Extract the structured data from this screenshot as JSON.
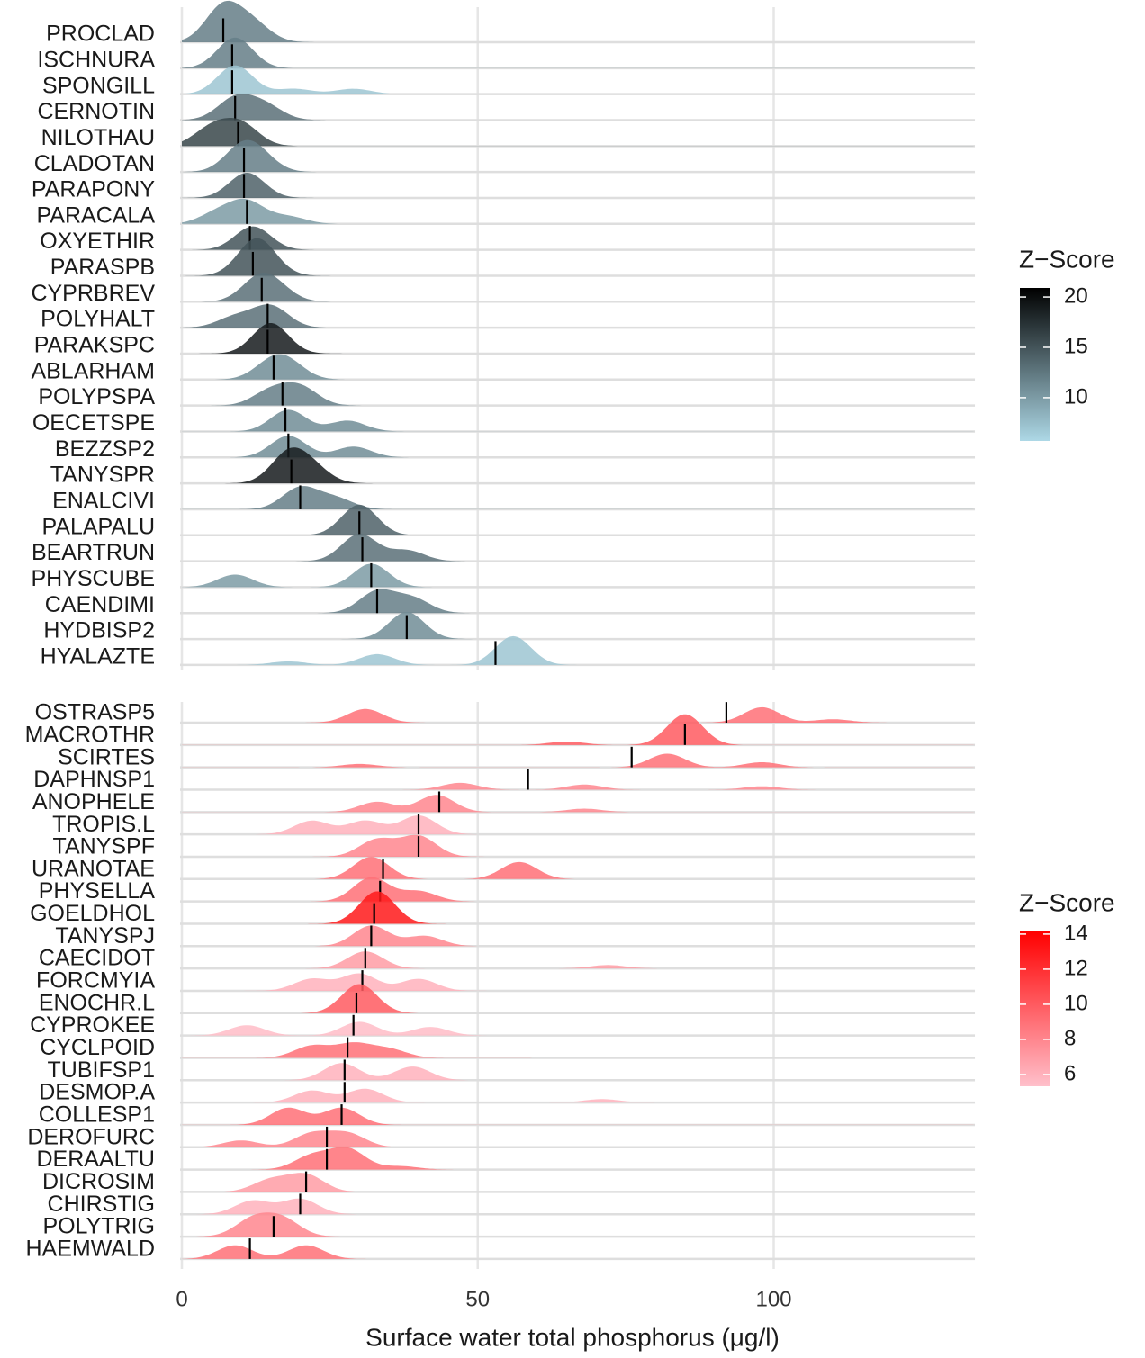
{
  "chart_data": {
    "type": "ridgeline",
    "x_label": "Surface water total phosphorus (μg/l)",
    "xlim": [
      0,
      134
    ],
    "xticks": [
      0,
      50,
      100
    ],
    "grid": true,
    "panels": [
      {
        "legend_title": "Z−Score",
        "color_low": "#add8e6",
        "color_high": "#000000",
        "zlim": [
          5.7,
          20.9
        ],
        "zticks": [
          10,
          15,
          20
        ],
        "rows": [
          {
            "name": "PROCLAD",
            "median": 7,
            "z": 12,
            "peaks": [
              [
                7,
                1
              ],
              [
                12,
                0.5
              ]
            ]
          },
          {
            "name": "ISCHNURA",
            "median": 8.5,
            "z": 12,
            "peaks": [
              [
                9,
                0.85
              ]
            ]
          },
          {
            "name": "SPONGILL",
            "median": 8.5,
            "z": 7,
            "peaks": [
              [
                9,
                0.8
              ],
              [
                19,
                0.15
              ],
              [
                29,
                0.15
              ]
            ]
          },
          {
            "name": "CERNOTIN",
            "median": 9,
            "z": 13,
            "peaks": [
              [
                9,
                0.6
              ],
              [
                14,
                0.4
              ]
            ]
          },
          {
            "name": "NILOTHAU",
            "median": 9.5,
            "z": 16,
            "peaks": [
              [
                5,
                0.5
              ],
              [
                10,
                0.6
              ]
            ]
          },
          {
            "name": "CLADOTAN",
            "median": 10.5,
            "z": 12,
            "peaks": [
              [
                10,
                0.6
              ],
              [
                13,
                0.4
              ]
            ]
          },
          {
            "name": "PARAPONY",
            "median": 10.5,
            "z": 14,
            "peaks": [
              [
                11,
                0.7
              ]
            ]
          },
          {
            "name": "PARACALA",
            "median": 11,
            "z": 10,
            "peaks": [
              [
                6,
                0.3
              ],
              [
                11,
                0.6
              ],
              [
                18,
                0.2
              ]
            ]
          },
          {
            "name": "OXYETHIR",
            "median": 11.5,
            "z": 15,
            "peaks": [
              [
                12,
                0.65
              ]
            ]
          },
          {
            "name": "PARASPB",
            "median": 12,
            "z": 15,
            "peaks": [
              [
                12,
                0.7
              ],
              [
                14,
                0.4
              ]
            ]
          },
          {
            "name": "CYPRBREV",
            "median": 13.5,
            "z": 13,
            "peaks": [
              [
                13,
                0.6
              ],
              [
                16,
                0.3
              ]
            ]
          },
          {
            "name": "POLYHALT",
            "median": 14.5,
            "z": 13,
            "peaks": [
              [
                9,
                0.3
              ],
              [
                15,
                0.6
              ]
            ]
          },
          {
            "name": "PARAKSPC",
            "median": 14.5,
            "z": 19,
            "peaks": [
              [
                15,
                0.85
              ]
            ]
          },
          {
            "name": "ABLARHAM",
            "median": 15.5,
            "z": 11,
            "peaks": [
              [
                15,
                0.4
              ],
              [
                18,
                0.4
              ]
            ]
          },
          {
            "name": "POLYPSPA",
            "median": 17,
            "z": 12,
            "peaks": [
              [
                15,
                0.4
              ],
              [
                20,
                0.5
              ]
            ]
          },
          {
            "name": "OECETSPE",
            "median": 17.5,
            "z": 11,
            "peaks": [
              [
                18,
                0.6
              ],
              [
                28,
                0.3
              ]
            ]
          },
          {
            "name": "BEZZSP2",
            "median": 18,
            "z": 11,
            "peaks": [
              [
                18,
                0.6
              ],
              [
                29,
                0.3
              ]
            ]
          },
          {
            "name": "TANYSPR",
            "median": 18.5,
            "z": 19,
            "peaks": [
              [
                18,
                0.8
              ],
              [
                22,
                0.4
              ]
            ]
          },
          {
            "name": "ENALCIVI",
            "median": 20,
            "z": 12,
            "peaks": [
              [
                20,
                0.6
              ],
              [
                26,
                0.3
              ]
            ]
          },
          {
            "name": "PALAPALU",
            "median": 30,
            "z": 14,
            "peaks": [
              [
                30,
                0.85
              ]
            ]
          },
          {
            "name": "BEARTRUN",
            "median": 30.5,
            "z": 13,
            "peaks": [
              [
                30,
                0.75
              ],
              [
                38,
                0.3
              ]
            ]
          },
          {
            "name": "PHYSCUBE",
            "median": 32,
            "z": 10,
            "peaks": [
              [
                9,
                0.35
              ],
              [
                32,
                0.65
              ]
            ]
          },
          {
            "name": "CAENDIMI",
            "median": 33,
            "z": 12,
            "peaks": [
              [
                33,
                0.6
              ],
              [
                39,
                0.4
              ]
            ]
          },
          {
            "name": "HYDBISP2",
            "median": 38,
            "z": 11,
            "peaks": [
              [
                38,
                0.75
              ]
            ]
          },
          {
            "name": "HYALAZTE",
            "median": 53,
            "z": 7,
            "peaks": [
              [
                18,
                0.1
              ],
              [
                33,
                0.3
              ],
              [
                56,
                0.8
              ]
            ]
          }
        ]
      },
      {
        "legend_title": "Z−Score",
        "color_low": "#ffc0cb",
        "color_high": "#ff0000",
        "zlim": [
          5.33,
          14.15
        ],
        "zticks": [
          6,
          8,
          10,
          12,
          14
        ],
        "rows": [
          {
            "name": "OSTRASP5",
            "median": 92,
            "z": 9,
            "peaks": [
              [
                31,
                0.4
              ],
              [
                98,
                0.45
              ],
              [
                110,
                0.1
              ]
            ]
          },
          {
            "name": "MACROTHR",
            "median": 85,
            "z": 10,
            "peaks": [
              [
                65,
                0.1
              ],
              [
                85,
                0.9
              ]
            ]
          },
          {
            "name": "SCIRTES",
            "median": 76,
            "z": 9,
            "peaks": [
              [
                30,
                0.1
              ],
              [
                82,
                0.4
              ],
              [
                98,
                0.15
              ]
            ]
          },
          {
            "name": "DAPHNSP1",
            "median": 58.5,
            "z": 8,
            "peaks": [
              [
                47,
                0.2
              ],
              [
                68,
                0.15
              ],
              [
                98,
                0.1
              ]
            ]
          },
          {
            "name": "ANOPHELE",
            "median": 43.5,
            "z": 8,
            "peaks": [
              [
                33,
                0.3
              ],
              [
                43,
                0.5
              ],
              [
                68,
                0.1
              ]
            ]
          },
          {
            "name": "TROPIS.L",
            "median": 40,
            "z": 6,
            "peaks": [
              [
                22,
                0.4
              ],
              [
                31,
                0.4
              ],
              [
                40,
                0.55
              ]
            ]
          },
          {
            "name": "TANYSPF",
            "median": 40,
            "z": 8,
            "peaks": [
              [
                33,
                0.5
              ],
              [
                40,
                0.6
              ]
            ]
          },
          {
            "name": "URANOTAE",
            "median": 34,
            "z": 9,
            "peaks": [
              [
                32,
                0.65
              ],
              [
                57,
                0.5
              ]
            ]
          },
          {
            "name": "PHYSELLA",
            "median": 33.5,
            "z": 9,
            "peaks": [
              [
                32,
                0.7
              ],
              [
                40,
                0.3
              ]
            ]
          },
          {
            "name": "GOELDHOL",
            "median": 32.5,
            "z": 13,
            "peaks": [
              [
                33,
                0.95
              ]
            ]
          },
          {
            "name": "TANYSPJ",
            "median": 32,
            "z": 8,
            "peaks": [
              [
                32,
                0.6
              ],
              [
                41,
                0.3
              ]
            ]
          },
          {
            "name": "CAECIDOT",
            "median": 31,
            "z": 7,
            "peaks": [
              [
                31,
                0.5
              ],
              [
                72,
                0.1
              ]
            ]
          },
          {
            "name": "FORCMYIA",
            "median": 30.5,
            "z": 6,
            "peaks": [
              [
                22,
                0.35
              ],
              [
                30,
                0.5
              ],
              [
                40,
                0.35
              ]
            ]
          },
          {
            "name": "ENOCHR.L",
            "median": 29.5,
            "z": 10,
            "peaks": [
              [
                30,
                0.85
              ]
            ]
          },
          {
            "name": "CYPROKEE",
            "median": 29,
            "z": 5.5,
            "peaks": [
              [
                11,
                0.3
              ],
              [
                30,
                0.4
              ],
              [
                42,
                0.25
              ]
            ]
          },
          {
            "name": "CYCLPOID",
            "median": 28,
            "z": 9,
            "peaks": [
              [
                22,
                0.35
              ],
              [
                29,
                0.4
              ],
              [
                35,
                0.25
              ]
            ]
          },
          {
            "name": "TUBIFSP1",
            "median": 27.5,
            "z": 6,
            "peaks": [
              [
                27,
                0.5
              ],
              [
                39,
                0.4
              ]
            ]
          },
          {
            "name": "DESMOP.A",
            "median": 27.5,
            "z": 6,
            "peaks": [
              [
                22,
                0.35
              ],
              [
                31,
                0.4
              ],
              [
                71,
                0.1
              ]
            ]
          },
          {
            "name": "COLLESP1",
            "median": 27,
            "z": 9,
            "peaks": [
              [
                18,
                0.5
              ],
              [
                27,
                0.5
              ]
            ]
          },
          {
            "name": "DEROFURC",
            "median": 24.5,
            "z": 8,
            "peaks": [
              [
                10,
                0.2
              ],
              [
                22,
                0.4
              ],
              [
                28,
                0.4
              ]
            ]
          },
          {
            "name": "DERAALTU",
            "median": 24.5,
            "z": 9,
            "peaks": [
              [
                22,
                0.4
              ],
              [
                28,
                0.6
              ],
              [
                37,
                0.1
              ]
            ]
          },
          {
            "name": "DICROSIM",
            "median": 21,
            "z": 7,
            "peaks": [
              [
                15,
                0.35
              ],
              [
                21,
                0.5
              ]
            ]
          },
          {
            "name": "CHIRSTIG",
            "median": 20,
            "z": 6,
            "peaks": [
              [
                12,
                0.4
              ],
              [
                20,
                0.45
              ]
            ]
          },
          {
            "name": "POLYTRIG",
            "median": 15.5,
            "z": 8,
            "peaks": [
              [
                12,
                0.5
              ],
              [
                17,
                0.5
              ]
            ]
          },
          {
            "name": "HAEMWALD",
            "median": 11.5,
            "z": 9,
            "peaks": [
              [
                9,
                0.4
              ],
              [
                21,
                0.4
              ]
            ]
          }
        ]
      }
    ]
  }
}
